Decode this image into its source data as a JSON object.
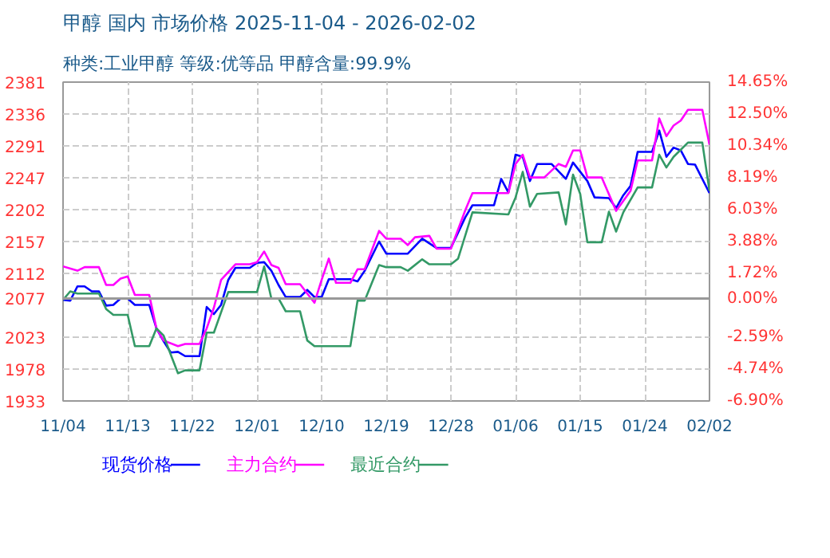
{
  "chart_data": {
    "type": "line",
    "title": "甲醇 国内 市场价格 2025-11-04 - 2026-02-02",
    "subtitle": "种类:工业甲醇 等级:优等品 甲醇含量:99.9%",
    "series": [
      {
        "name": "现货价格",
        "color": "#0000ff",
        "x": [
          "2025-11-04",
          "2025-11-05",
          "2025-11-06",
          "2025-11-07",
          "2025-11-08",
          "2025-11-09",
          "2025-11-10",
          "2025-11-11",
          "2025-11-12",
          "2025-11-13",
          "2025-11-14",
          "2025-11-16",
          "2025-11-17",
          "2025-11-18",
          "2025-11-19",
          "2025-11-20",
          "2025-11-21",
          "2025-11-23",
          "2025-11-24",
          "2025-11-25",
          "2025-11-26",
          "2025-11-27",
          "2025-11-28",
          "2025-11-30",
          "2025-12-01",
          "2025-12-02",
          "2025-12-03",
          "2025-12-04",
          "2025-12-05",
          "2025-12-07",
          "2025-12-08",
          "2025-12-09",
          "2025-12-10",
          "2025-12-11",
          "2025-12-14",
          "2025-12-15",
          "2025-12-16",
          "2025-12-18",
          "2025-12-19",
          "2025-12-22",
          "2025-12-24",
          "2025-12-26",
          "2025-12-28",
          "2025-12-30",
          "2025-12-31",
          "2026-01-03",
          "2026-01-04",
          "2026-01-05",
          "2026-01-06",
          "2026-01-07",
          "2026-01-08",
          "2026-01-09",
          "2026-01-11",
          "2026-01-13",
          "2026-01-14",
          "2026-01-16",
          "2026-01-17",
          "2026-01-19",
          "2026-01-20",
          "2026-01-21",
          "2026-01-22",
          "2026-01-23",
          "2026-01-25",
          "2026-01-26",
          "2026-01-27",
          "2026-01-28",
          "2026-01-29",
          "2026-01-30",
          "2026-01-31",
          "2026-02-02"
        ],
        "values": [
          2075,
          2074,
          2094,
          2094,
          2087,
          2087,
          2067,
          2068,
          2077,
          2077,
          2068,
          2068,
          2035,
          2017,
          2001,
          2002,
          1996,
          1996,
          2065,
          2055,
          2068,
          2103,
          2120,
          2120,
          2127,
          2128,
          2116,
          2096,
          2079,
          2079,
          2089,
          2079,
          2079,
          2104,
          2104,
          2101,
          2116,
          2157,
          2140,
          2140,
          2161,
          2148,
          2148,
          2191,
          2208,
          2208,
          2245,
          2226,
          2279,
          2276,
          2242,
          2266,
          2266,
          2245,
          2268,
          2242,
          2219,
          2218,
          2204,
          2222,
          2235,
          2283,
          2283,
          2313,
          2276,
          2289,
          2285,
          2266,
          2265,
          2225
        ]
      },
      {
        "name": "主力合约",
        "color": "#ff00ff",
        "x": [
          "2025-11-04",
          "2025-11-06",
          "2025-11-07",
          "2025-11-09",
          "2025-11-10",
          "2025-11-11",
          "2025-11-12",
          "2025-11-13",
          "2025-11-14",
          "2025-11-16",
          "2025-11-17",
          "2025-11-18",
          "2025-11-20",
          "2025-11-21",
          "2025-11-23",
          "2025-11-24",
          "2025-11-25",
          "2025-11-26",
          "2025-11-28",
          "2025-11-30",
          "2025-12-01",
          "2025-12-02",
          "2025-12-03",
          "2025-12-04",
          "2025-12-05",
          "2025-12-07",
          "2025-12-08",
          "2025-12-09",
          "2025-12-10",
          "2025-12-11",
          "2025-12-12",
          "2025-12-14",
          "2025-12-15",
          "2025-12-16",
          "2025-12-18",
          "2025-12-19",
          "2025-12-21",
          "2025-12-22",
          "2025-12-23",
          "2025-12-25",
          "2025-12-26",
          "2025-12-28",
          "2025-12-30",
          "2025-12-31",
          "2026-01-05",
          "2026-01-06",
          "2026-01-07",
          "2026-01-08",
          "2026-01-10",
          "2026-01-12",
          "2026-01-13",
          "2026-01-14",
          "2026-01-15",
          "2026-01-16",
          "2026-01-18",
          "2026-01-20",
          "2026-01-22",
          "2026-01-23",
          "2026-01-25",
          "2026-01-26",
          "2026-01-27",
          "2026-01-28",
          "2026-01-29",
          "2026-01-30",
          "2026-02-01",
          "2026-02-02"
        ],
        "values": [
          2122,
          2116,
          2121,
          2121,
          2096,
          2096,
          2105,
          2108,
          2082,
          2082,
          2035,
          2018,
          2010,
          2013,
          2013,
          2035,
          2064,
          2103,
          2125,
          2125,
          2128,
          2143,
          2124,
          2120,
          2097,
          2097,
          2084,
          2071,
          2103,
          2133,
          2099,
          2099,
          2118,
          2118,
          2172,
          2161,
          2161,
          2152,
          2163,
          2165,
          2147,
          2147,
          2201,
          2225,
          2225,
          2266,
          2279,
          2247,
          2247,
          2266,
          2262,
          2285,
          2285,
          2247,
          2247,
          2200,
          2228,
          2271,
          2271,
          2330,
          2305,
          2320,
          2327,
          2342,
          2342,
          2293
        ]
      },
      {
        "name": "最近合约",
        "color": "#339966",
        "x": [
          "2025-11-04",
          "2025-11-05",
          "2025-11-06",
          "2025-11-09",
          "2025-11-10",
          "2025-11-11",
          "2025-11-13",
          "2025-11-14",
          "2025-11-16",
          "2025-11-17",
          "2025-11-18",
          "2025-11-19",
          "2025-11-20",
          "2025-11-21",
          "2025-11-23",
          "2025-11-24",
          "2025-11-25",
          "2025-11-27",
          "2025-12-01",
          "2025-12-02",
          "2025-12-03",
          "2025-12-04",
          "2025-12-05",
          "2025-12-07",
          "2025-12-08",
          "2025-12-09",
          "2025-12-14",
          "2025-12-15",
          "2025-12-16",
          "2025-12-18",
          "2025-12-19",
          "2025-12-21",
          "2025-12-22",
          "2025-12-24",
          "2025-12-25",
          "2025-12-28",
          "2025-12-29",
          "2025-12-31",
          "2026-01-05",
          "2026-01-06",
          "2026-01-07",
          "2026-01-08",
          "2026-01-09",
          "2026-01-12",
          "2026-01-13",
          "2026-01-14",
          "2026-01-15",
          "2026-01-16",
          "2026-01-18",
          "2026-01-19",
          "2026-01-20",
          "2026-01-21",
          "2026-01-23",
          "2026-01-25",
          "2026-01-26",
          "2026-01-27",
          "2026-01-28",
          "2026-01-30",
          "2026-02-01",
          "2026-02-02"
        ],
        "values": [
          2075,
          2087,
          2084,
          2084,
          2062,
          2054,
          2054,
          2010,
          2010,
          2035,
          2025,
          1998,
          1972,
          1976,
          1976,
          2029,
          2029,
          2086,
          2086,
          2122,
          2077,
          2077,
          2059,
          2059,
          2018,
          2010,
          2010,
          2074,
          2074,
          2124,
          2121,
          2121,
          2116,
          2132,
          2125,
          2125,
          2133,
          2198,
          2195,
          2219,
          2255,
          2206,
          2224,
          2226,
          2181,
          2251,
          2224,
          2156,
          2156,
          2199,
          2171,
          2198,
          2233,
          2233,
          2279,
          2261,
          2276,
          2296,
          2296,
          2228
        ]
      }
    ],
    "xlim": [
      "2025-11-04",
      "2026-02-02"
    ],
    "xticks": [
      {
        "value": "2025-11-04",
        "label": "11/04"
      },
      {
        "value": "2025-11-13",
        "label": "11/13"
      },
      {
        "value": "2025-11-22",
        "label": "11/22"
      },
      {
        "value": "2025-12-01",
        "label": "12/01"
      },
      {
        "value": "2025-12-10",
        "label": "12/10"
      },
      {
        "value": "2025-12-19",
        "label": "12/19"
      },
      {
        "value": "2025-12-28",
        "label": "12/28"
      },
      {
        "value": "2026-01-06",
        "label": "01/06"
      },
      {
        "value": "2026-01-15",
        "label": "01/15"
      },
      {
        "value": "2026-01-24",
        "label": "01/24"
      },
      {
        "value": "2026-02-02",
        "label": "02/02"
      }
    ],
    "ylim": [
      1933,
      2381
    ],
    "yticks": [
      1933,
      1978,
      2023,
      2077,
      2112,
      2157,
      2202,
      2247,
      2291,
      2336,
      2381
    ],
    "y2lim": [
      -6.9,
      14.65
    ],
    "y2ticks": [
      {
        "value": -6.9,
        "label": "-6.90%"
      },
      {
        "value": -4.74,
        "label": "-4.74%"
      },
      {
        "value": -2.59,
        "label": "-2.59%"
      },
      {
        "value": 0,
        "label": "0.00%"
      },
      {
        "value": 1.72,
        "label": "1.72%"
      },
      {
        "value": 3.88,
        "label": "3.88%"
      },
      {
        "value": 6.03,
        "label": "6.03%"
      },
      {
        "value": 8.19,
        "label": "8.19%"
      },
      {
        "value": 10.34,
        "label": "10.34%"
      },
      {
        "value": 12.5,
        "label": "12.50%"
      },
      {
        "value": 14.65,
        "label": "14.65%"
      }
    ],
    "ref_lines": [
      {
        "axis": "y",
        "value": 2077,
        "color": "#999999"
      }
    ],
    "grid": true,
    "legend": "bottom",
    "line_style": "solid",
    "marker": "none"
  }
}
